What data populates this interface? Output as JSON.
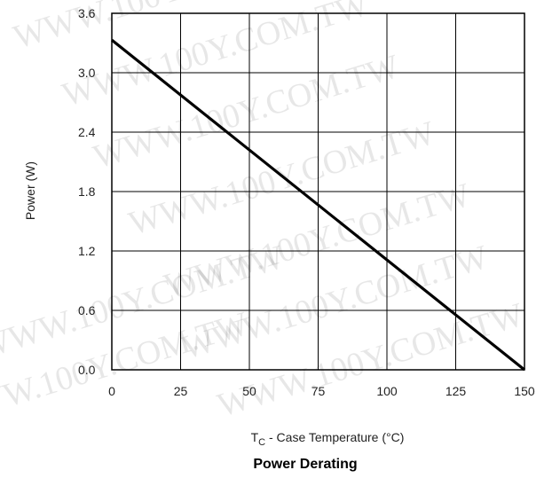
{
  "watermark": "WWW.100Y.COM.TW",
  "chart_data": {
    "type": "line",
    "title": "Power Derating",
    "xlabel_main": "T",
    "xlabel_sub": "C",
    "xlabel_rest": " - Case Temperature (°C)",
    "ylabel": "Power  (W)",
    "xlim": [
      0,
      150
    ],
    "ylim": [
      0,
      3.6
    ],
    "x_ticks": [
      0,
      25,
      50,
      75,
      100,
      125,
      150
    ],
    "y_ticks": [
      0.0,
      0.6,
      1.2,
      1.8,
      2.4,
      3.0,
      3.6
    ],
    "x_tick_labels": [
      "0",
      "25",
      "50",
      "75",
      "100",
      "125",
      "150"
    ],
    "y_tick_labels": [
      "0.0",
      "0.6",
      "1.2",
      "1.8",
      "2.4",
      "3.0",
      "3.6"
    ],
    "grid": true,
    "series": [
      {
        "x": [
          0,
          150
        ],
        "y": [
          3.33,
          0.0
        ]
      }
    ]
  }
}
